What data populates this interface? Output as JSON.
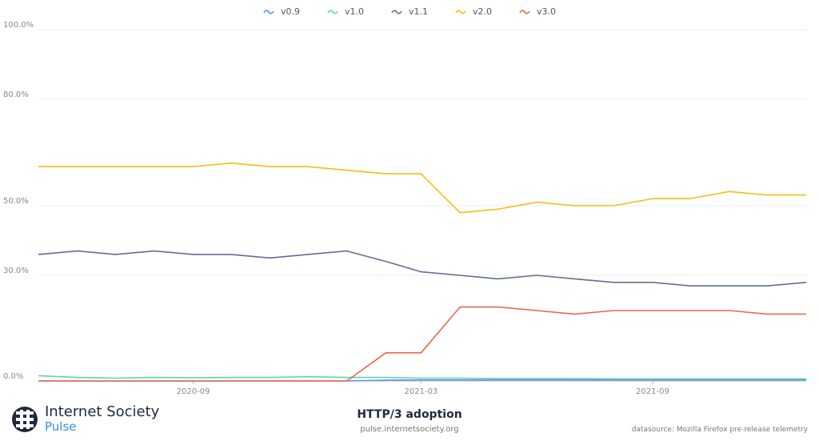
{
  "chart_data": {
    "type": "line",
    "title": "HTTP/3 adoption",
    "x": [
      "2020-05-01",
      "2020-06-01",
      "2020-07-01",
      "2020-08-01",
      "2020-09-01",
      "2020-10-01",
      "2020-11-01",
      "2020-12-01",
      "2021-01-01",
      "2021-02-01",
      "2021-03-01",
      "2021-04-01",
      "2021-05-01",
      "2021-06-01",
      "2021-07-01",
      "2021-08-01",
      "2021-09-01",
      "2021-10-01",
      "2021-11-01",
      "2021-12-01",
      "2022-01-01"
    ],
    "x_ticks": [
      "2020-09",
      "2021-03",
      "2021-09"
    ],
    "y_ticks": [
      "0.0%",
      "30.0%",
      "50.0%",
      "80.0%",
      "100.0%"
    ],
    "ylim": [
      0,
      100
    ],
    "grid": true,
    "legend_position": "top-center",
    "series": [
      {
        "name": "v0.9",
        "color": "#5b8ff9",
        "values": [
          0,
          0,
          0,
          0,
          0,
          0,
          0,
          0,
          0,
          0.2,
          0.3,
          0.3,
          0.3,
          0.3,
          0.3,
          0.3,
          0.3,
          0.3,
          0.3,
          0.3,
          0.3
        ]
      },
      {
        "name": "v1.0",
        "color": "#5ad8a6",
        "values": [
          1.5,
          1,
          0.8,
          1,
          0.9,
          1,
          1,
          1.2,
          1,
          1,
          0.8,
          0.8,
          0.7,
          0.7,
          0.7,
          0.6,
          0.6,
          0.6,
          0.6,
          0.6,
          0.6
        ]
      },
      {
        "name": "v1.1",
        "color": "#5d7092",
        "values": [
          36,
          37,
          36,
          37,
          36,
          36,
          35,
          36,
          37,
          34,
          31,
          30,
          29,
          30,
          29,
          28,
          28,
          27,
          27,
          27,
          28
        ]
      },
      {
        "name": "v2.0",
        "color": "#f6bd16",
        "values": [
          61,
          61,
          61,
          61,
          61,
          62,
          61,
          61,
          60,
          59,
          59,
          48,
          49,
          51,
          50,
          50,
          52,
          52,
          54,
          53,
          53
        ]
      },
      {
        "name": "v3.0",
        "color": "#e8684a",
        "values": [
          0,
          0,
          0,
          0,
          0,
          0,
          0,
          0,
          0,
          8,
          8,
          21,
          21,
          20,
          19,
          20,
          20,
          20,
          20,
          19,
          19
        ]
      }
    ]
  },
  "footer": {
    "brand_line1": "Internet Society",
    "brand_line2": "Pulse",
    "title": "HTTP/3 adoption",
    "url": "pulse.internetsociety.org",
    "source": "datasource: Mozilla Firefox pre-release telemetry"
  }
}
